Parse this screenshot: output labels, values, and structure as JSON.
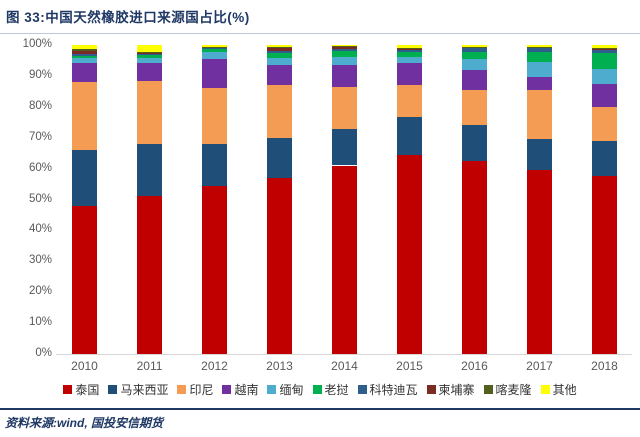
{
  "header": {
    "title": "图 33:中国天然橡胶进口来源国占比(%)"
  },
  "footer": {
    "source": "资料来源:wind, 国投安信期货"
  },
  "colors": {
    "title_text": "#1F3864",
    "axis_text": "#595959",
    "legend_text": "#333333",
    "baseline": "#D6D6D6",
    "title_rule": "#BCC9DA",
    "source_rule": "#1F3864"
  },
  "chart_data": {
    "type": "bar",
    "stacked": true,
    "unit": "%",
    "title": "中国天然橡胶进口来源国占比(%)",
    "categories": [
      "2010",
      "2011",
      "2012",
      "2013",
      "2014",
      "2015",
      "2016",
      "2017",
      "2018"
    ],
    "series": [
      {
        "name": "泰国",
        "color": "#C00000",
        "values": [
          48.0,
          51.0,
          54.5,
          57.0,
          61.0,
          64.3,
          62.5,
          59.5,
          57.6
        ]
      },
      {
        "name": "马来西亚",
        "color": "#1F4E79",
        "values": [
          18.0,
          17.0,
          13.6,
          12.8,
          11.7,
          12.5,
          11.5,
          10.1,
          11.4
        ]
      },
      {
        "name": "印尼",
        "color": "#F49B54",
        "values": [
          22.0,
          20.2,
          18.0,
          17.2,
          13.7,
          10.2,
          11.3,
          15.8,
          10.8
        ]
      },
      {
        "name": "越南",
        "color": "#7030A0",
        "values": [
          6.3,
          6.1,
          9.5,
          6.6,
          7.2,
          7.3,
          6.5,
          4.2,
          7.7
        ]
      },
      {
        "name": "缅甸",
        "color": "#4EACCF",
        "values": [
          1.5,
          1.6,
          2.0,
          2.2,
          2.5,
          1.9,
          3.6,
          4.9,
          4.8
        ]
      },
      {
        "name": "老挝",
        "color": "#00B050",
        "values": [
          0.7,
          0.8,
          1.1,
          1.6,
          2.0,
          1.6,
          2.2,
          3.3,
          5.1
        ]
      },
      {
        "name": "科特迪瓦",
        "color": "#2E5E8C",
        "values": [
          0.5,
          0.4,
          0.3,
          0.6,
          0.5,
          0.8,
          1.6,
          1.2,
          1.0
        ]
      },
      {
        "name": "柬埔寨",
        "color": "#7B2B24",
        "values": [
          0.9,
          0.4,
          0.3,
          1.2,
          0.9,
          0.2,
          0.2,
          0.2,
          0.4
        ]
      },
      {
        "name": "喀麦隆",
        "color": "#535F1C",
        "values": [
          0.8,
          0.3,
          0.2,
          0.1,
          0.1,
          0.1,
          0.1,
          0.1,
          0.2
        ]
      },
      {
        "name": "其他",
        "color": "#FFFF00",
        "values": [
          1.3,
          2.2,
          0.5,
          0.7,
          0.4,
          1.1,
          0.5,
          0.7,
          1.0
        ]
      }
    ],
    "ylabel": "",
    "ylim": [
      0,
      100
    ],
    "y_ticks": [
      "0%",
      "10%",
      "20%",
      "30%",
      "40%",
      "50%",
      "60%",
      "70%",
      "80%",
      "90%",
      "100%"
    ],
    "grid": false,
    "legend_position": "bottom"
  }
}
